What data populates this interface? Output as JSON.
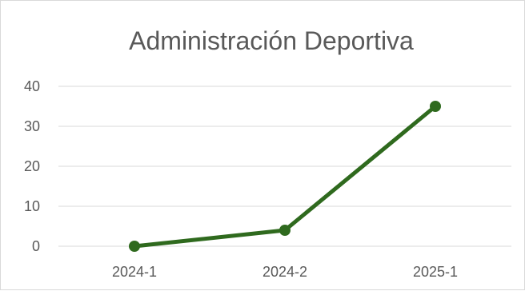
{
  "chart_data": {
    "type": "line",
    "title": "Administración Deportiva",
    "categories": [
      "2024-1",
      "2024-2",
      "2025-1"
    ],
    "series": [
      {
        "values": [
          0,
          4,
          35
        ]
      }
    ],
    "ylim": [
      0,
      40
    ],
    "yticks": [
      0,
      10,
      20,
      30,
      40
    ],
    "grid": true,
    "legend": "none",
    "colors": {
      "line": "#2f6a1e",
      "grid": "#d9d9d9",
      "text": "#595959",
      "border": "#d9d9d9"
    }
  }
}
